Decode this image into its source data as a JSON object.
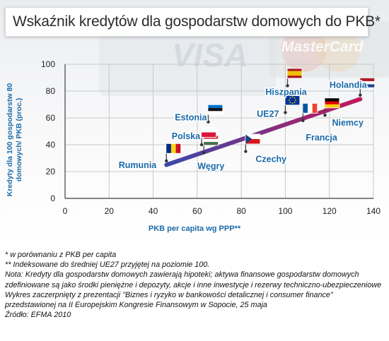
{
  "chart_data": {
    "type": "scatter",
    "title": "Wskaźnik kredytów dla gospodarstw domowych do PKB*",
    "xlabel": "PKB per capita wg PPP**",
    "ylabel_lines": [
      "Kredyty dla 100 gospodarstw 80",
      "domowych/ PKB (proc.)"
    ],
    "xlim": [
      0,
      140
    ],
    "ylim": [
      0,
      100
    ],
    "xticks": [
      "0",
      "20",
      "40",
      "60",
      "80",
      "100",
      "120",
      "140"
    ],
    "yticks": [
      "0",
      "20",
      "40",
      "60",
      "80",
      "100"
    ],
    "grid": true,
    "trendline": {
      "x": [
        46,
        134
      ],
      "y": [
        25,
        74
      ]
    },
    "points": [
      {
        "label": "Rumunia",
        "x": 46,
        "y": 28
      },
      {
        "label": "Węgry",
        "x": 63,
        "y": 34
      },
      {
        "label": "Polska",
        "x": 62,
        "y": 40
      },
      {
        "label": "Estonia",
        "x": 65,
        "y": 57
      },
      {
        "label": "Czechy",
        "x": 82,
        "y": 35
      },
      {
        "label": "UE27",
        "x": 100,
        "y": 64
      },
      {
        "label": "Francja",
        "x": 108,
        "y": 58
      },
      {
        "label": "Niemcy",
        "x": 118,
        "y": 62
      },
      {
        "label": "Hiszpania",
        "x": 101,
        "y": 84
      },
      {
        "label": "Holandia",
        "x": 134,
        "y": 77
      }
    ]
  },
  "background_text": {
    "visa": "VISA",
    "mastercard": "MasterCard"
  },
  "colors": {
    "axis": "#5b5b5b",
    "grid": "#c8c8c8",
    "label_blue": "#1a6aa9",
    "trend_start": "#3949ab",
    "trend_end": "#c2185b"
  },
  "notes": [
    "* w porównaniu z PKB per capita",
    "** Indeksowane do średniej UE27 przyjętej na poziomie 100.",
    "Nota: Kredyty dla gospodarstw domowych zawierają hipoteki; aktywa finansowe gospodarstw domowych zdefiniowane są jako środki pieniężne i depozyty, akcje i inne inwestycje i rezerwy techniczno-ubezpieczeniowe",
    "Wykres zaczerpnięty z prezentacji \"Biznes i ryzyko w bankowości detalicznej i consumer finance\" przedstawionej na II Europejskim Kongresie Finansowym w Sopocie, 25 maja",
    "Źródło: EFMA 2010"
  ]
}
